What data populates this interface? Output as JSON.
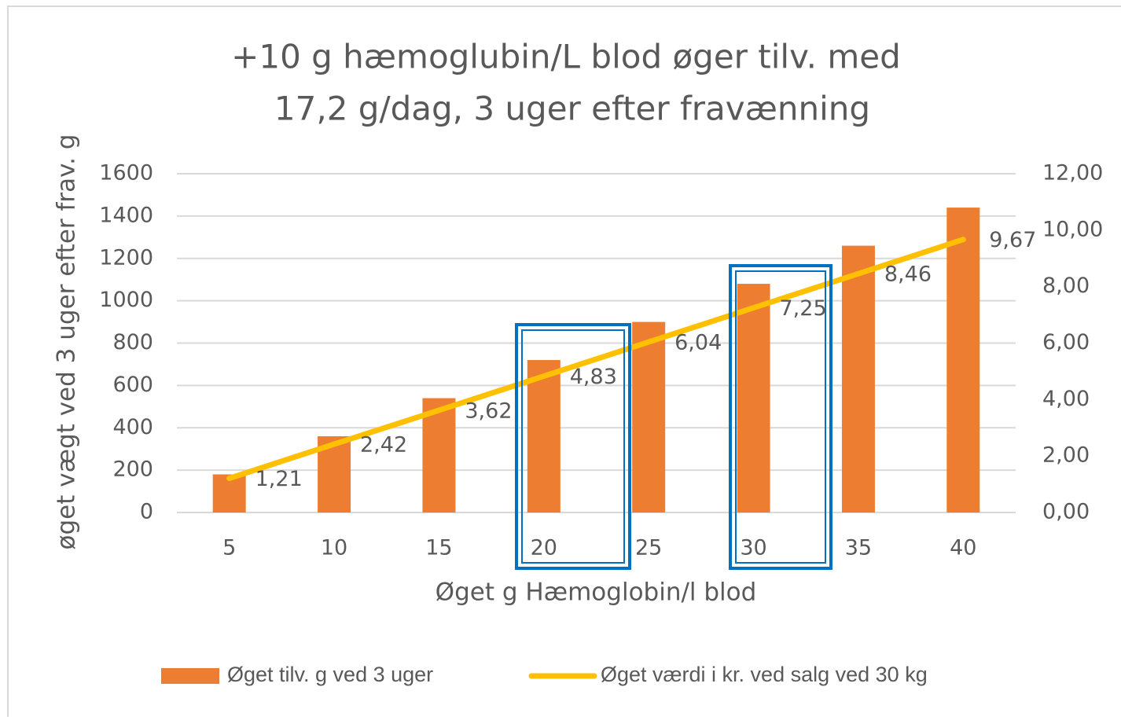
{
  "chart_data": {
    "type": "bar_line",
    "title": [
      "+10 g hæmoglubin/L blod øger tilv. med",
      "17,2 g/dag, 3 uger efter fravænning"
    ],
    "xlabel": "Øget g Hæmoglobin/l blod",
    "ylabel": "øget vægt ved 3 uger efter frav. g",
    "categories": [
      5,
      10,
      15,
      20,
      25,
      30,
      35,
      40
    ],
    "series": [
      {
        "name": "Øget tilv. g ved 3 uger",
        "type": "bar",
        "color": "#ed7d31",
        "values": [
          180,
          360,
          540,
          720,
          900,
          1080,
          1260,
          1440
        ]
      },
      {
        "name": "Øget værdi i kr. ved salg ved 30 kg",
        "type": "line",
        "axis": "y2",
        "color": "#ffc000",
        "values": [
          1.21,
          2.42,
          3.62,
          4.83,
          6.04,
          7.25,
          8.46,
          9.67
        ],
        "value_labels": [
          "1,21",
          "2,42",
          "3,62",
          "4,83",
          "6,04",
          "7,25",
          "8,46",
          "9,67"
        ]
      }
    ],
    "ylim": [
      0,
      1600
    ],
    "yticks": [
      0,
      200,
      400,
      600,
      800,
      1000,
      1200,
      1400,
      1600
    ],
    "y2lim": [
      0,
      12
    ],
    "y2ticks": [
      {
        "value": 0,
        "label": "0,00"
      },
      {
        "value": 2,
        "label": "2,00"
      },
      {
        "value": 4,
        "label": "4,00"
      },
      {
        "value": 6,
        "label": "6,00"
      },
      {
        "value": 8,
        "label": "8,00"
      },
      {
        "value": 10,
        "label": "10,00"
      },
      {
        "value": 12,
        "label": "12,00"
      }
    ],
    "grid": true,
    "legend": "bottom"
  }
}
